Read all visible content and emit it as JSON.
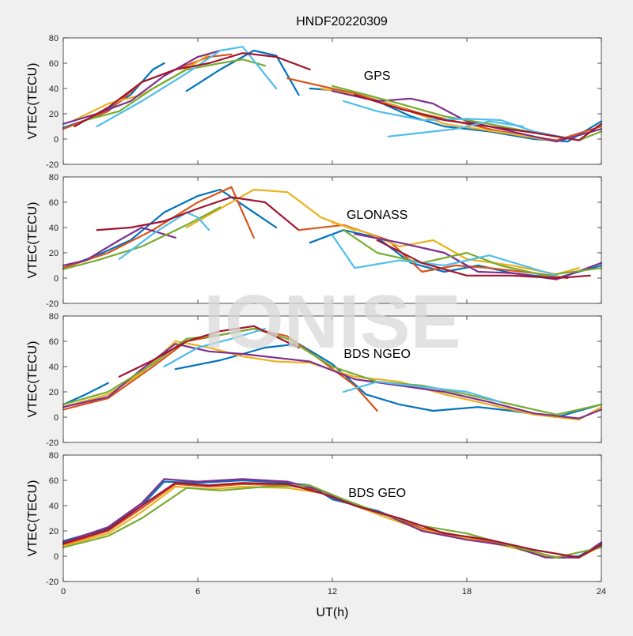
{
  "figure": {
    "title": "HNDF20220309",
    "watermark": "IONISE",
    "xlabel": "UT(h)"
  },
  "chart_data": [
    {
      "type": "line",
      "label": "GPS",
      "ylabel": "VTEC(TECU)",
      "xlim": [
        0,
        24
      ],
      "ylim": [
        -20,
        80
      ],
      "xticks": [
        0,
        6,
        12,
        18,
        24
      ],
      "yticks": [
        -20,
        0,
        20,
        40,
        60,
        80
      ],
      "series": [
        {
          "color": "#0072BD",
          "x": [
            0,
            1.5,
            3,
            4,
            4.5
          ],
          "y": [
            9,
            18,
            35,
            55,
            60
          ]
        },
        {
          "color": "#0072BD",
          "x": [
            5.5,
            7,
            8.5,
            9.5,
            10.5
          ],
          "y": [
            38,
            55,
            70,
            66,
            35
          ]
        },
        {
          "color": "#D95319",
          "x": [
            0,
            2,
            3.5,
            5,
            6.5,
            7.5
          ],
          "y": [
            8,
            22,
            45,
            55,
            65,
            67
          ]
        },
        {
          "color": "#EDB120",
          "x": [
            0.5,
            2,
            3.5,
            5,
            6.5
          ],
          "y": [
            15,
            28,
            35,
            50,
            67
          ]
        },
        {
          "color": "#7E2F8E",
          "x": [
            0,
            1.5,
            3,
            4.5,
            6,
            7
          ],
          "y": [
            12,
            20,
            30,
            50,
            65,
            70
          ]
        },
        {
          "color": "#77AC30",
          "x": [
            1,
            2.5,
            4,
            5.5,
            7,
            8,
            9
          ],
          "y": [
            15,
            22,
            40,
            55,
            60,
            63,
            58
          ]
        },
        {
          "color": "#4DBEEE",
          "x": [
            1.5,
            3.5,
            5.5,
            7,
            8,
            9.5
          ],
          "y": [
            10,
            30,
            52,
            70,
            73,
            40
          ]
        },
        {
          "color": "#A2142F",
          "x": [
            0.5,
            2,
            3.5,
            5,
            6.5,
            8,
            9.5,
            11
          ],
          "y": [
            10,
            25,
            45,
            55,
            60,
            68,
            65,
            55
          ]
        },
        {
          "color": "#0072BD",
          "x": [
            11,
            12.5,
            14,
            15.5,
            17,
            19,
            21,
            22.5,
            24
          ],
          "y": [
            40,
            38,
            30,
            18,
            10,
            6,
            0,
            -2,
            14
          ]
        },
        {
          "color": "#D95319",
          "x": [
            10,
            11.5,
            13,
            14.5,
            16,
            17.5,
            19.5,
            22,
            24
          ],
          "y": [
            48,
            42,
            36,
            28,
            20,
            14,
            6,
            -1,
            10
          ]
        },
        {
          "color": "#EDB120",
          "x": [
            11.5,
            13,
            15,
            17,
            18.5,
            20,
            22
          ],
          "y": [
            40,
            35,
            25,
            12,
            8,
            4,
            -2
          ]
        },
        {
          "color": "#7E2F8E",
          "x": [
            12,
            14,
            15.5,
            16.5,
            18,
            20,
            22,
            24
          ],
          "y": [
            38,
            30,
            32,
            28,
            14,
            6,
            -2,
            8
          ]
        },
        {
          "color": "#77AC30",
          "x": [
            12,
            13.5,
            15,
            17,
            19,
            21,
            23,
            24
          ],
          "y": [
            42,
            35,
            28,
            18,
            12,
            5,
            -1,
            6
          ]
        },
        {
          "color": "#4DBEEE",
          "x": [
            12.5,
            14,
            16,
            18,
            19.5,
            21,
            23
          ],
          "y": [
            30,
            22,
            15,
            16,
            15,
            6,
            -1
          ]
        },
        {
          "color": "#A2142F",
          "x": [
            13,
            15,
            17,
            19,
            21,
            23,
            24
          ],
          "y": [
            35,
            24,
            15,
            10,
            5,
            -1,
            12
          ]
        },
        {
          "color": "#4DBEEE",
          "x": [
            14.5,
            16,
            17.5,
            19,
            20.5
          ],
          "y": [
            2,
            5,
            8,
            14,
            10
          ]
        }
      ]
    },
    {
      "type": "line",
      "label": "GLONASS",
      "ylabel": "VTEC(TECU)",
      "xlim": [
        0,
        24
      ],
      "ylim": [
        -20,
        80
      ],
      "xticks": [
        0,
        6,
        12,
        18,
        24
      ],
      "yticks": [
        -20,
        0,
        20,
        40,
        60,
        80
      ],
      "series": [
        {
          "color": "#0072BD",
          "x": [
            0,
            1.5,
            3,
            4.5,
            6,
            7,
            8.5,
            9.5
          ],
          "y": [
            8,
            18,
            30,
            52,
            65,
            70,
            52,
            40
          ]
        },
        {
          "color": "#D95319",
          "x": [
            0,
            2,
            4,
            6,
            7.5,
            8.5
          ],
          "y": [
            8,
            20,
            38,
            60,
            72,
            32
          ]
        },
        {
          "color": "#EDB120",
          "x": [
            5.5,
            7,
            8.5,
            10,
            11.5,
            13
          ],
          "y": [
            40,
            55,
            70,
            68,
            48,
            38
          ]
        },
        {
          "color": "#7E2F8E",
          "x": [
            0,
            1,
            2.5,
            3.5,
            5
          ],
          "y": [
            10,
            14,
            30,
            40,
            32
          ]
        },
        {
          "color": "#77AC30",
          "x": [
            0,
            1.5,
            3.5,
            5.5,
            7
          ],
          "y": [
            7,
            14,
            25,
            42,
            56
          ]
        },
        {
          "color": "#4DBEEE",
          "x": [
            2.5,
            4,
            5.5,
            6,
            6.5
          ],
          "y": [
            15,
            35,
            52,
            48,
            38
          ]
        },
        {
          "color": "#A2142F",
          "x": [
            1.5,
            3,
            4.5,
            6,
            7.5,
            9,
            10.5
          ],
          "y": [
            38,
            40,
            45,
            55,
            64,
            60,
            38
          ]
        },
        {
          "color": "#0072BD",
          "x": [
            11,
            12.5,
            14,
            15.5,
            17,
            18.5,
            20,
            22,
            24
          ],
          "y": [
            28,
            38,
            32,
            12,
            5,
            10,
            4,
            0,
            10
          ]
        },
        {
          "color": "#D95319",
          "x": [
            10.5,
            12.5,
            14.5,
            16,
            17.5,
            19,
            21,
            22.5
          ],
          "y": [
            38,
            42,
            30,
            5,
            10,
            8,
            4,
            0
          ]
        },
        {
          "color": "#EDB120",
          "x": [
            12,
            13.5,
            15,
            16.5,
            18,
            20,
            22,
            23
          ],
          "y": [
            44,
            36,
            25,
            30,
            15,
            10,
            3,
            8
          ]
        },
        {
          "color": "#7E2F8E",
          "x": [
            13,
            15,
            17,
            18.5,
            20,
            22,
            24
          ],
          "y": [
            35,
            28,
            20,
            5,
            4,
            -1,
            12
          ]
        },
        {
          "color": "#77AC30",
          "x": [
            12.5,
            14,
            16,
            18,
            19.5,
            21.5,
            24
          ],
          "y": [
            38,
            20,
            12,
            20,
            10,
            2,
            8
          ]
        },
        {
          "color": "#4DBEEE",
          "x": [
            12,
            13,
            15,
            17,
            19,
            20.5,
            22
          ],
          "y": [
            34,
            8,
            14,
            10,
            18,
            10,
            2
          ]
        },
        {
          "color": "#A2142F",
          "x": [
            14,
            16,
            18,
            20,
            22,
            23.5
          ],
          "y": [
            30,
            12,
            2,
            2,
            0,
            2
          ]
        }
      ]
    },
    {
      "type": "line",
      "label": "BDS NGEO",
      "ylabel": "VTEC(TECU)",
      "xlim": [
        0,
        24
      ],
      "ylim": [
        -20,
        80
      ],
      "xticks": [
        0,
        6,
        12,
        18,
        24
      ],
      "yticks": [
        -20,
        0,
        20,
        40,
        60,
        80
      ],
      "series": [
        {
          "color": "#0072BD",
          "x": [
            0,
            1,
            2
          ],
          "y": [
            10,
            18,
            27
          ]
        },
        {
          "color": "#0072BD",
          "x": [
            5,
            7,
            9,
            10.5,
            12,
            13.5,
            15,
            16.5,
            18.5,
            20,
            22,
            24
          ],
          "y": [
            38,
            45,
            55,
            58,
            42,
            18,
            10,
            5,
            8,
            5,
            0,
            10
          ]
        },
        {
          "color": "#D95319",
          "x": [
            0,
            2,
            4,
            5.5,
            7,
            8.5,
            10,
            11.5,
            13,
            14
          ],
          "y": [
            6,
            15,
            40,
            60,
            65,
            70,
            64,
            45,
            25,
            5
          ]
        },
        {
          "color": "#EDB120",
          "x": [
            0,
            2,
            3.5,
            5,
            6.5,
            8,
            9.5,
            11,
            13,
            15,
            17,
            19,
            21,
            23,
            24
          ],
          "y": [
            8,
            18,
            35,
            60,
            55,
            48,
            44,
            43,
            32,
            28,
            18,
            10,
            2,
            -2,
            8
          ]
        },
        {
          "color": "#7E2F8E",
          "x": [
            0,
            2,
            3.5,
            5,
            6.5,
            8,
            9.5,
            11,
            13,
            15,
            17,
            19,
            21,
            23,
            24
          ],
          "y": [
            8,
            16,
            38,
            58,
            52,
            50,
            47,
            44,
            30,
            25,
            20,
            12,
            3,
            -1,
            6
          ]
        },
        {
          "color": "#77AC30",
          "x": [
            0,
            2,
            4,
            5.5,
            7,
            8.5,
            10,
            12,
            14,
            16,
            18,
            20,
            22,
            24
          ],
          "y": [
            10,
            20,
            42,
            62,
            65,
            70,
            62,
            40,
            28,
            25,
            18,
            10,
            2,
            10
          ]
        },
        {
          "color": "#4DBEEE",
          "x": [
            4.5,
            6,
            7.5,
            9
          ],
          "y": [
            40,
            55,
            62,
            70
          ]
        },
        {
          "color": "#A2142F",
          "x": [
            2.5,
            4,
            5.5,
            7,
            8.5,
            10.5
          ],
          "y": [
            32,
            45,
            60,
            68,
            72,
            55
          ]
        },
        {
          "color": "#4DBEEE",
          "x": [
            12.5,
            14,
            16,
            18,
            19.5
          ],
          "y": [
            20,
            28,
            24,
            20,
            12
          ]
        }
      ]
    },
    {
      "type": "line",
      "label": "BDS GEO",
      "ylabel": "VTEC(TECU)",
      "xlim": [
        0,
        24
      ],
      "ylim": [
        -20,
        80
      ],
      "xticks": [
        0,
        6,
        12,
        18,
        24
      ],
      "yticks": [
        -20,
        0,
        20,
        40,
        60,
        80
      ],
      "series": [
        {
          "color": "#0072BD",
          "x": [
            0,
            2,
            3.5,
            4.5,
            6,
            8,
            10,
            11,
            12,
            14,
            16,
            18,
            19,
            20,
            21,
            22,
            23,
            24
          ],
          "y": [
            12,
            22,
            40,
            59,
            58,
            60,
            58,
            56,
            45,
            36,
            22,
            15,
            12,
            8,
            2,
            -1,
            0,
            10
          ]
        },
        {
          "color": "#D95319",
          "x": [
            0,
            2,
            3.5,
            5,
            6.5,
            8,
            10,
            11.5,
            13,
            14.5,
            16,
            18,
            20,
            21,
            22,
            23,
            24
          ],
          "y": [
            9,
            20,
            38,
            57,
            55,
            57,
            56,
            52,
            40,
            32,
            22,
            15,
            8,
            2,
            -1,
            -1,
            9
          ]
        },
        {
          "color": "#EDB120",
          "x": [
            0,
            2,
            3.5,
            5,
            6.5,
            8,
            10,
            11.5,
            13,
            14.5,
            16,
            18,
            20,
            21.5,
            23,
            24
          ],
          "y": [
            8,
            18,
            35,
            55,
            53,
            55,
            54,
            50,
            40,
            30,
            21,
            14,
            7,
            0,
            -1,
            8
          ]
        },
        {
          "color": "#7E2F8E",
          "x": [
            0,
            2,
            3.5,
            4.5,
            6,
            8,
            10,
            11.5,
            13,
            14.5,
            16,
            18,
            20,
            21.5,
            23,
            24
          ],
          "y": [
            11,
            23,
            42,
            61,
            59,
            61,
            59,
            52,
            40,
            32,
            20,
            13,
            8,
            -1,
            -1,
            11
          ]
        },
        {
          "color": "#77AC30",
          "x": [
            0,
            2,
            3.5,
            5.5,
            7,
            9,
            11,
            12.5,
            14,
            16,
            18,
            20,
            22,
            24
          ],
          "y": [
            7,
            16,
            30,
            54,
            52,
            55,
            56,
            45,
            35,
            24,
            18,
            8,
            -1,
            7
          ]
        },
        {
          "color": "#A2142F",
          "x": [
            0,
            2,
            3.5,
            5,
            6.5,
            8,
            10,
            11.5,
            13,
            15,
            17,
            19,
            21,
            23,
            24
          ],
          "y": [
            10,
            21,
            40,
            58,
            56,
            58,
            57,
            50,
            40,
            30,
            18,
            13,
            5,
            -1,
            9
          ]
        }
      ]
    }
  ]
}
